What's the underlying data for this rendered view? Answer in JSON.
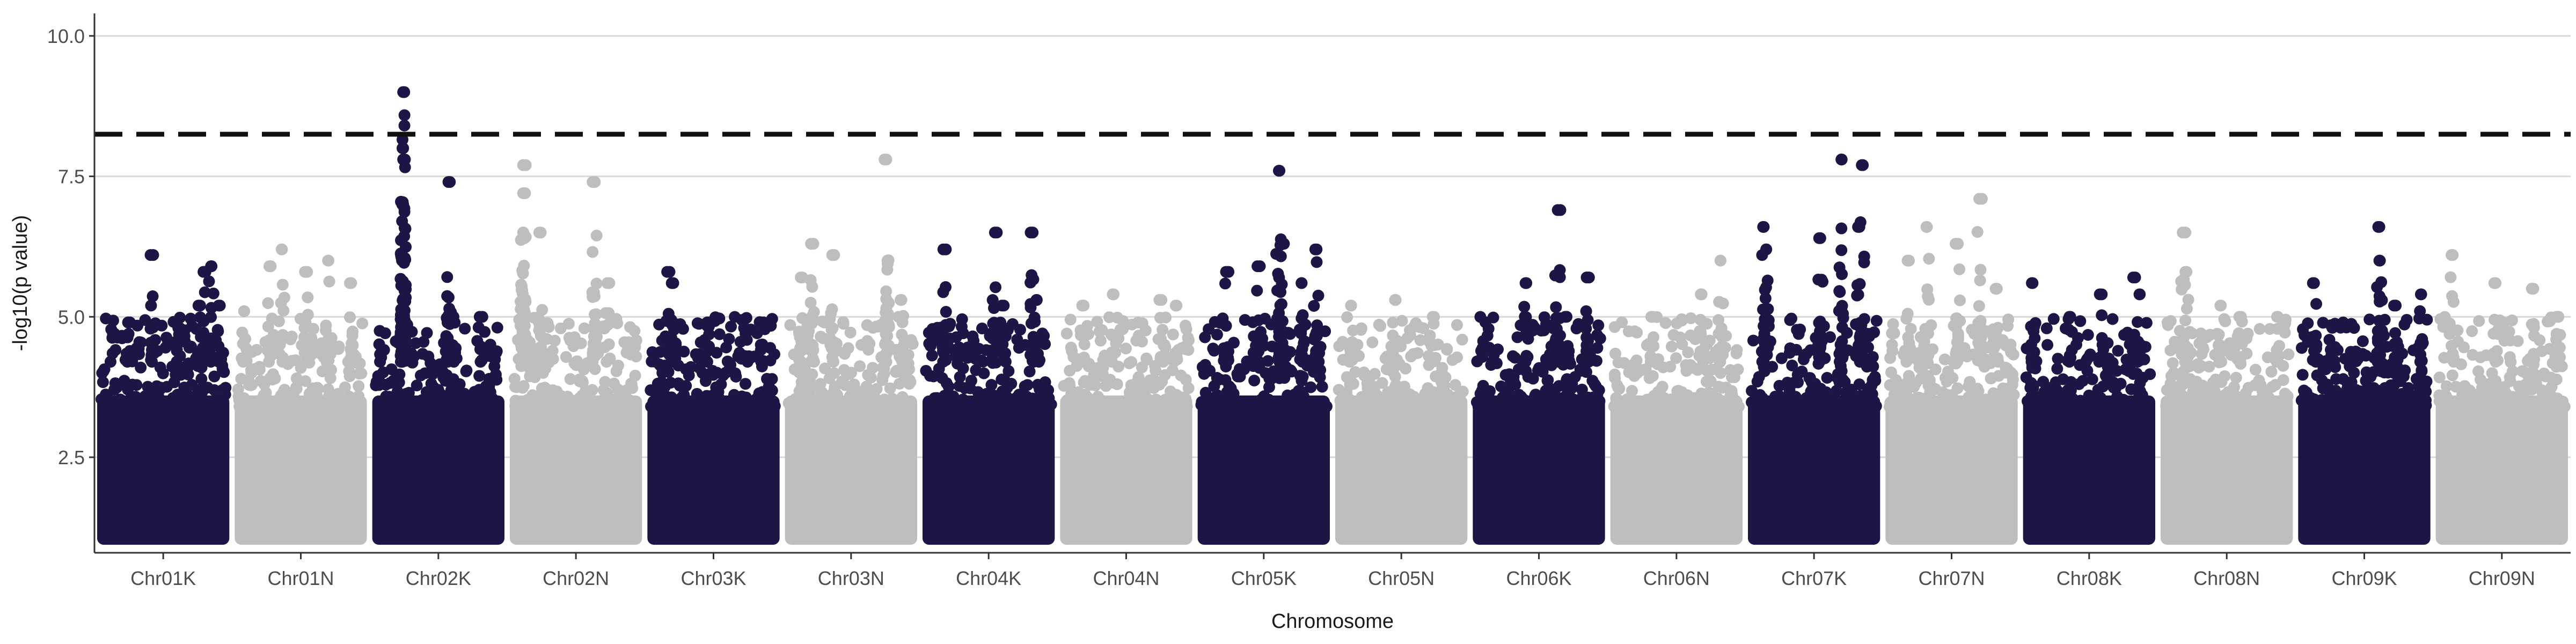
{
  "chart_data": {
    "type": "scatter",
    "title": "",
    "xlabel": "Chromosome",
    "ylabel": "-log10(p value)",
    "ylim": [
      0.8,
      10.4
    ],
    "yticks": [
      2.5,
      5.0,
      7.5,
      10.0
    ],
    "ytick_labels": [
      "2.5",
      "5.0",
      "7.5",
      "10.0"
    ],
    "grid": "horizontal major lines at y ticks",
    "significance_threshold": 8.25,
    "threshold_style": "dashed black",
    "colors": {
      "dark": "#1e1446",
      "light": "#bebebe",
      "threshold": "#111111",
      "grid": "#d9d9d9"
    },
    "categories": [
      "Chr01K",
      "Chr01N",
      "Chr02K",
      "Chr02N",
      "Chr03K",
      "Chr03N",
      "Chr04K",
      "Chr04N",
      "Chr05K",
      "Chr05N",
      "Chr06K",
      "Chr06N",
      "Chr07K",
      "Chr07N",
      "Chr08K",
      "Chr08N",
      "Chr09K",
      "Chr09N"
    ],
    "series": [
      {
        "chromosome": "Chr01K",
        "color": "dark",
        "peaks": [
          [
            0.1,
            4.7
          ],
          [
            0.22,
            4.9
          ],
          [
            0.42,
            6.1
          ],
          [
            0.62,
            4.8
          ],
          [
            0.78,
            5.2
          ],
          [
            0.82,
            5.8
          ],
          [
            0.88,
            5.9
          ],
          [
            0.95,
            5.2
          ]
        ]
      },
      {
        "chromosome": "Chr01N",
        "color": "light",
        "peaks": [
          [
            0.05,
            5.1
          ],
          [
            0.25,
            5.9
          ],
          [
            0.35,
            6.2
          ],
          [
            0.55,
            5.8
          ],
          [
            0.72,
            6.0
          ],
          [
            0.9,
            5.6
          ]
        ]
      },
      {
        "chromosome": "Chr02K",
        "color": "dark",
        "peaks": [
          [
            0.22,
            9.0
          ],
          [
            0.22,
            8.0
          ],
          [
            0.22,
            7.8
          ],
          [
            0.22,
            7.0
          ],
          [
            0.22,
            6.0
          ],
          [
            0.58,
            7.4
          ],
          [
            0.62,
            5.0
          ],
          [
            0.85,
            5.0
          ]
        ]
      },
      {
        "chromosome": "Chr02N",
        "color": "light",
        "peaks": [
          [
            0.08,
            7.7
          ],
          [
            0.08,
            7.2
          ],
          [
            0.08,
            6.5
          ],
          [
            0.22,
            6.5
          ],
          [
            0.65,
            7.4
          ],
          [
            0.75,
            5.6
          ]
        ]
      },
      {
        "chromosome": "Chr03K",
        "color": "dark",
        "peaks": [
          [
            0.15,
            5.8
          ],
          [
            0.18,
            5.6
          ],
          [
            0.45,
            4.9
          ],
          [
            0.75,
            4.8
          ],
          [
            0.88,
            4.9
          ]
        ]
      },
      {
        "chromosome": "Chr03N",
        "color": "light",
        "peaks": [
          [
            0.1,
            5.7
          ],
          [
            0.2,
            6.3
          ],
          [
            0.35,
            6.1
          ],
          [
            0.78,
            7.8
          ],
          [
            0.9,
            5.3
          ]
        ]
      },
      {
        "chromosome": "Chr04K",
        "color": "dark",
        "peaks": [
          [
            0.14,
            6.2
          ],
          [
            0.55,
            6.5
          ],
          [
            0.62,
            5.2
          ],
          [
            0.85,
            6.5
          ],
          [
            0.88,
            5.3
          ]
        ]
      },
      {
        "chromosome": "Chr04N",
        "color": "light",
        "peaks": [
          [
            0.15,
            5.2
          ],
          [
            0.4,
            5.4
          ],
          [
            0.78,
            5.3
          ],
          [
            0.9,
            5.2
          ]
        ]
      },
      {
        "chromosome": "Chr05K",
        "color": "dark",
        "peaks": [
          [
            0.2,
            5.8
          ],
          [
            0.45,
            5.9
          ],
          [
            0.62,
            7.6
          ],
          [
            0.64,
            6.3
          ],
          [
            0.8,
            5.6
          ],
          [
            0.92,
            6.2
          ]
        ]
      },
      {
        "chromosome": "Chr05N",
        "color": "light",
        "peaks": [
          [
            0.1,
            5.2
          ],
          [
            0.45,
            5.3
          ],
          [
            0.75,
            5.0
          ]
        ]
      },
      {
        "chromosome": "Chr06K",
        "color": "dark",
        "peaks": [
          [
            0.4,
            5.6
          ],
          [
            0.65,
            6.9
          ],
          [
            0.72,
            5.0
          ],
          [
            0.88,
            5.7
          ]
        ]
      },
      {
        "chromosome": "Chr06N",
        "color": "light",
        "peaks": [
          [
            0.3,
            5.0
          ],
          [
            0.7,
            5.4
          ],
          [
            0.85,
            6.0
          ]
        ]
      },
      {
        "chromosome": "Chr07K",
        "color": "dark",
        "peaks": [
          [
            0.1,
            6.6
          ],
          [
            0.12,
            6.2
          ],
          [
            0.55,
            6.4
          ],
          [
            0.72,
            7.8
          ],
          [
            0.85,
            6.6
          ],
          [
            0.88,
            7.7
          ]
        ]
      },
      {
        "chromosome": "Chr07N",
        "color": "light",
        "peaks": [
          [
            0.15,
            6.0
          ],
          [
            0.3,
            6.6
          ],
          [
            0.55,
            6.3
          ],
          [
            0.72,
            7.1
          ],
          [
            0.85,
            5.5
          ]
        ]
      },
      {
        "chromosome": "Chr08K",
        "color": "dark",
        "peaks": [
          [
            0.05,
            5.6
          ],
          [
            0.35,
            5.0
          ],
          [
            0.6,
            5.4
          ],
          [
            0.85,
            5.7
          ],
          [
            0.9,
            5.4
          ]
        ]
      },
      {
        "chromosome": "Chr08N",
        "color": "light",
        "peaks": [
          [
            0.15,
            6.5
          ],
          [
            0.18,
            5.8
          ],
          [
            0.45,
            5.2
          ],
          [
            0.6,
            5.0
          ],
          [
            0.9,
            5.0
          ]
        ]
      },
      {
        "chromosome": "Chr09K",
        "color": "dark",
        "peaks": [
          [
            0.1,
            5.6
          ],
          [
            0.62,
            6.6
          ],
          [
            0.62,
            6.0
          ],
          [
            0.75,
            5.2
          ],
          [
            0.95,
            5.4
          ]
        ]
      },
      {
        "chromosome": "Chr09N",
        "color": "light",
        "peaks": [
          [
            0.1,
            6.1
          ],
          [
            0.45,
            5.6
          ],
          [
            0.75,
            5.5
          ],
          [
            0.95,
            5.0
          ]
        ]
      }
    ]
  }
}
